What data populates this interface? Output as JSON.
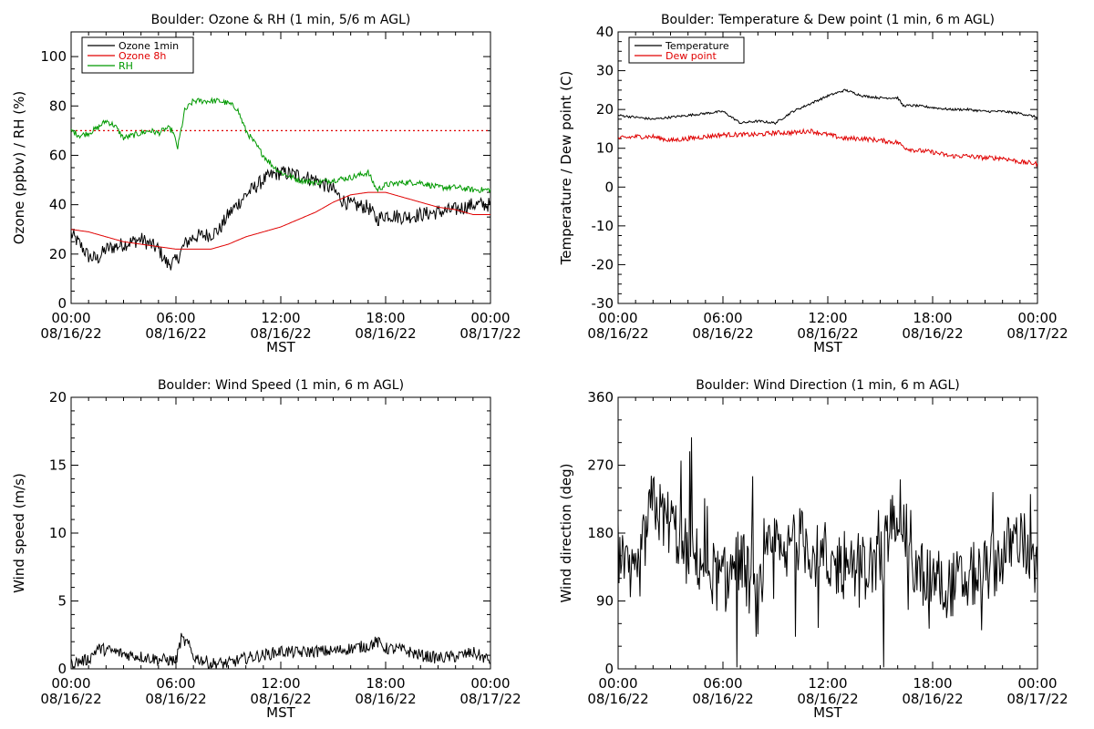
{
  "chart_data": [
    {
      "type": "line",
      "title": "Boulder: Ozone & RH (1 min, 5/6 m AGL)",
      "xlabel": "MST",
      "ylabel": "Ozone (ppbv) / RH (%)",
      "xlim": [
        "08/16/22 00:00",
        "08/17/22 00:00"
      ],
      "ylim": [
        0,
        110
      ],
      "yticks": [
        0,
        20,
        40,
        60,
        80,
        100
      ],
      "xticks": [
        {
          "time": "00:00",
          "date": "08/16/22"
        },
        {
          "time": "06:00",
          "date": "08/16/22"
        },
        {
          "time": "12:00",
          "date": "08/16/22"
        },
        {
          "time": "18:00",
          "date": "08/16/22"
        },
        {
          "time": "00:00",
          "date": "08/17/22"
        }
      ],
      "legend": {
        "placement": "top-left",
        "entries": [
          "Ozone 1min",
          "Ozone 8h",
          "RH"
        ]
      },
      "reference_line": {
        "y": 70,
        "color": "#e00000",
        "style": "dotted"
      },
      "series": [
        {
          "name": "Ozone 1min",
          "color": "#000000",
          "noise": 3,
          "x": [
            0,
            0.5,
            1,
            1.5,
            2,
            3,
            4,
            5,
            5.5,
            6,
            6.5,
            7,
            8,
            8.5,
            9,
            9.5,
            10,
            10.5,
            11,
            11.5,
            12,
            13,
            14,
            15,
            15.5,
            16,
            17,
            17.5,
            18,
            19,
            20,
            21,
            22,
            23,
            24
          ],
          "y": [
            28,
            24,
            19,
            18,
            22,
            24,
            26,
            22,
            16,
            17,
            24,
            27,
            28,
            30,
            36,
            40,
            44,
            47,
            50,
            52,
            53,
            52,
            50,
            46,
            42,
            40,
            39,
            34,
            36,
            35,
            36,
            37,
            38,
            40,
            40
          ]
        },
        {
          "name": "Ozone 8h",
          "color": "#e00000",
          "noise": 0,
          "x": [
            0,
            1,
            2,
            3,
            4,
            5,
            6,
            7,
            8,
            9,
            10,
            11,
            12,
            13,
            14,
            15,
            16,
            17,
            18,
            19,
            20,
            21,
            22,
            23,
            24
          ],
          "y": [
            30,
            29,
            27,
            25,
            24,
            23,
            22,
            22,
            22,
            24,
            27,
            29,
            31,
            34,
            37,
            41,
            44,
            45,
            45,
            43,
            41,
            39,
            38,
            36,
            36
          ]
        },
        {
          "name": "RH",
          "color": "#009900",
          "noise": 1.2,
          "x": [
            0,
            0.5,
            1,
            1.5,
            2,
            2.5,
            3,
            3.5,
            4,
            4.5,
            5,
            5.5,
            5.8,
            6.1,
            6.5,
            7,
            7.5,
            8,
            8.5,
            9,
            9.5,
            10,
            10.5,
            11,
            11.5,
            12,
            13,
            14,
            15,
            16,
            17,
            17.5,
            18,
            19,
            20,
            21,
            22,
            23,
            24
          ],
          "y": [
            70,
            68,
            69,
            71,
            74,
            72,
            67,
            68,
            69,
            70,
            69,
            71,
            70,
            63,
            78,
            82,
            82,
            82,
            82,
            81,
            79,
            70,
            65,
            60,
            56,
            53,
            50,
            49,
            50,
            51,
            53,
            46,
            48,
            49,
            49,
            47,
            47,
            46,
            46
          ]
        }
      ]
    },
    {
      "type": "line",
      "title": "Boulder: Temperature & Dew point (1 min, 6 m AGL)",
      "xlabel": "MST",
      "ylabel": "Temperature / Dew point (C)",
      "xlim": [
        "08/16/22 00:00",
        "08/17/22 00:00"
      ],
      "ylim": [
        -30,
        40
      ],
      "yticks": [
        -30,
        -20,
        -10,
        0,
        10,
        20,
        30,
        40
      ],
      "xticks": [
        {
          "time": "00:00",
          "date": "08/16/22"
        },
        {
          "time": "06:00",
          "date": "08/16/22"
        },
        {
          "time": "12:00",
          "date": "08/16/22"
        },
        {
          "time": "18:00",
          "date": "08/16/22"
        },
        {
          "time": "00:00",
          "date": "08/17/22"
        }
      ],
      "legend": {
        "placement": "top-left",
        "entries": [
          "Temperature",
          "Dew point"
        ]
      },
      "series": [
        {
          "name": "Temperature",
          "color": "#000000",
          "noise": 0.3,
          "x": [
            0,
            1,
            2,
            3,
            4,
            5,
            6,
            6.5,
            7,
            8,
            9,
            10,
            11,
            12,
            13,
            14,
            15,
            16,
            16.3,
            17,
            18,
            19,
            20,
            21,
            22,
            23,
            24
          ],
          "y": [
            18.5,
            18,
            17.5,
            18,
            18.5,
            19,
            19.5,
            18,
            16.5,
            17,
            16.5,
            19.5,
            21.5,
            23.5,
            25,
            23.5,
            23,
            23,
            21,
            21,
            20.5,
            20,
            20,
            19.5,
            19.5,
            19,
            18
          ]
        },
        {
          "name": "Dew point",
          "color": "#e00000",
          "noise": 0.6,
          "x": [
            0,
            1,
            2,
            3,
            4,
            5,
            6,
            7,
            8,
            9,
            10,
            11,
            12,
            13,
            14,
            15,
            16,
            16.5,
            17,
            18,
            19,
            20,
            21,
            22,
            23,
            24
          ],
          "y": [
            12.5,
            13,
            13,
            12,
            12.5,
            13,
            13.5,
            13.5,
            13.5,
            14,
            14,
            14.5,
            13.5,
            12.5,
            12.5,
            12,
            11.5,
            10,
            9.5,
            9,
            8,
            8,
            7.5,
            7.5,
            6.5,
            6
          ]
        }
      ]
    },
    {
      "type": "line",
      "title": "Boulder: Wind Speed (1 min, 6 m AGL)",
      "xlabel": "MST",
      "ylabel": "Wind speed (m/s)",
      "xlim": [
        "08/16/22 00:00",
        "08/17/22 00:00"
      ],
      "ylim": [
        0,
        20
      ],
      "yticks": [
        0,
        5,
        10,
        15,
        20
      ],
      "xticks": [
        {
          "time": "00:00",
          "date": "08/16/22"
        },
        {
          "time": "06:00",
          "date": "08/16/22"
        },
        {
          "time": "12:00",
          "date": "08/16/22"
        },
        {
          "time": "18:00",
          "date": "08/16/22"
        },
        {
          "time": "00:00",
          "date": "08/17/22"
        }
      ],
      "series": [
        {
          "color": "#000000",
          "noise": 0.45,
          "x": [
            0,
            1,
            1.5,
            2,
            3,
            4,
            5,
            6,
            6.3,
            6.7,
            7,
            8,
            9,
            10,
            11,
            12,
            13,
            14,
            15,
            16,
            17,
            17.5,
            18,
            19,
            20,
            21,
            22,
            23,
            24
          ],
          "y": [
            0.4,
            0.7,
            1.5,
            1.4,
            1.1,
            0.9,
            0.7,
            0.6,
            2.2,
            1.8,
            0.9,
            0.4,
            0.4,
            0.8,
            1.0,
            1.3,
            1.2,
            1.3,
            1.3,
            1.5,
            1.7,
            2.0,
            1.5,
            1.4,
            1.0,
            0.8,
            0.9,
            1.2,
            0.6
          ]
        }
      ]
    },
    {
      "type": "line",
      "title": "Boulder: Wind Direction (1 min, 6 m AGL)",
      "xlabel": "MST",
      "ylabel": "Wind direction (deg)",
      "xlim": [
        "08/16/22 00:00",
        "08/17/22 00:00"
      ],
      "ylim": [
        0,
        360
      ],
      "yticks": [
        0,
        90,
        180,
        270,
        360
      ],
      "xticks": [
        {
          "time": "00:00",
          "date": "08/16/22"
        },
        {
          "time": "06:00",
          "date": "08/16/22"
        },
        {
          "time": "12:00",
          "date": "08/16/22"
        },
        {
          "time": "18:00",
          "date": "08/16/22"
        },
        {
          "time": "00:00",
          "date": "08/17/22"
        }
      ],
      "series": [
        {
          "color": "#000000",
          "noise": 45,
          "x": [
            0,
            0.5,
            1,
            2,
            2.5,
            3,
            4,
            5,
            6,
            7,
            8,
            8.5,
            9,
            9.5,
            10,
            11,
            12,
            13,
            14,
            15,
            16,
            17,
            18,
            19,
            20,
            21,
            22,
            23,
            24
          ],
          "y": [
            150,
            120,
            110,
            225,
            200,
            195,
            150,
            140,
            110,
            150,
            80,
            140,
            170,
            130,
            180,
            160,
            130,
            145,
            135,
            140,
            220,
            130,
            120,
            110,
            120,
            130,
            150,
            180,
            120
          ]
        }
      ]
    }
  ]
}
